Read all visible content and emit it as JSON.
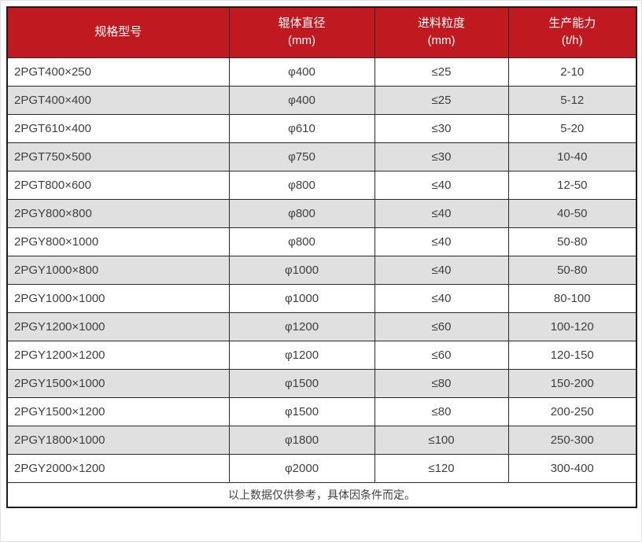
{
  "chart_data": {
    "type": "table",
    "columns": [
      {
        "label": "规格型号",
        "unit": ""
      },
      {
        "label": "辊体直径",
        "unit": "(mm)"
      },
      {
        "label": "进料粒度",
        "unit": "(mm)"
      },
      {
        "label": "生产能力",
        "unit": "(t/h)"
      }
    ],
    "rows": [
      [
        "2PGT400×250",
        "φ400",
        "≤25",
        "2-10"
      ],
      [
        "2PGT400×400",
        "φ400",
        "≤25",
        "5-12"
      ],
      [
        "2PGT610×400",
        "φ610",
        "≤30",
        "5-20"
      ],
      [
        "2PGT750×500",
        "φ750",
        "≤30",
        "10-40"
      ],
      [
        "2PGT800×600",
        "φ800",
        "≤40",
        "12-50"
      ],
      [
        "2PGY800×800",
        "φ800",
        "≤40",
        "40-50"
      ],
      [
        "2PGY800×1000",
        "φ800",
        "≤40",
        "50-80"
      ],
      [
        "2PGY1000×800",
        "φ1000",
        "≤40",
        "50-80"
      ],
      [
        "2PGY1000×1000",
        "φ1000",
        "≤40",
        "80-100"
      ],
      [
        "2PGY1200×1000",
        "φ1200",
        "≤60",
        "100-120"
      ],
      [
        "2PGY1200×1200",
        "φ1200",
        "≤60",
        "120-150"
      ],
      [
        "2PGY1500×1000",
        "φ1500",
        "≤80",
        "150-200"
      ],
      [
        "2PGY1500×1200",
        "φ1500",
        "≤80",
        "200-250"
      ],
      [
        "2PGY1800×1000",
        "φ1800",
        "≤100",
        "250-300"
      ],
      [
        "2PGY2000×1200",
        "φ2000",
        "≤120",
        "300-400"
      ]
    ],
    "footnote": "以上数据仅供参考，具体因条件而定。"
  },
  "colors": {
    "header_bg": "#C01920",
    "header_text": "#FFFFFF",
    "row_bg": "#FFFFFF",
    "row_alt_bg": "#E0E0E0",
    "text": "#3F3F3F",
    "border": "#2A2A2A"
  }
}
